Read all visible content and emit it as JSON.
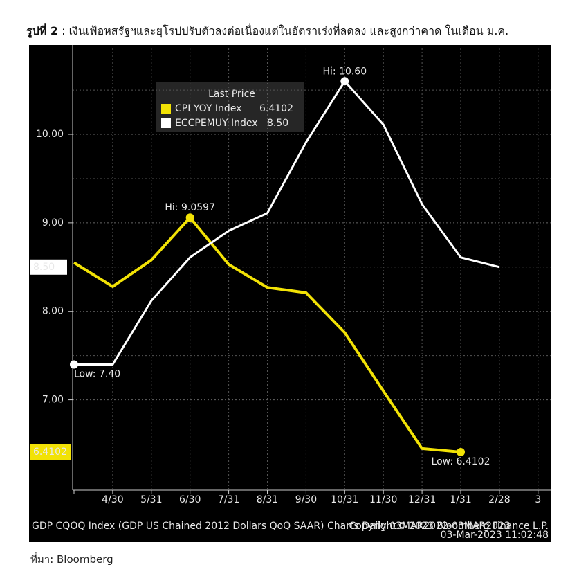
{
  "caption": {
    "label": "รูปที่ 2",
    "text": " : เงินเฟ้อหสรัฐฯและยุโรปปรับตัวลงต่อเนื่องแต่ในอัตราเร่งที่ลดลง และสูงกว่าคาด ในเดือน ม.ค."
  },
  "source": "ที่มา: Bloomberg",
  "chart_data": {
    "type": "line",
    "legend_title": "Last Price",
    "categories": [
      null,
      "4/30",
      "5/31",
      "6/30",
      "7/31",
      "8/31",
      "9/30",
      "10/31",
      "11/30",
      "12/31",
      "1/31",
      "2/28",
      "3"
    ],
    "series": [
      {
        "name": "CPI YOY Index",
        "color": "#f2e205",
        "last_label": "6.4102",
        "hi_label": "Hi: 9.0597",
        "low_label": "Low: 6.4102",
        "values": [
          8.55,
          8.28,
          8.58,
          9.0597,
          8.53,
          8.27,
          8.21,
          7.76,
          7.1,
          6.45,
          6.4102,
          null,
          null
        ]
      },
      {
        "name": "ECCPEMUY Index",
        "color": "#ffffff",
        "last_label": "8.50",
        "hi_label": "Hi: 10.60",
        "low_label": "Low: 7.40",
        "values": [
          7.4,
          7.4,
          8.12,
          8.61,
          8.91,
          9.11,
          9.91,
          10.6,
          10.11,
          9.21,
          8.61,
          8.5,
          null
        ]
      }
    ],
    "ylim": [
      5.98,
      10.97
    ],
    "yticks": [
      {
        "value": 7,
        "label": "7.00"
      },
      {
        "value": 8,
        "label": "8.00"
      },
      {
        "value": 9,
        "label": "9.00"
      },
      {
        "value": 10,
        "label": "10.00"
      }
    ],
    "minor_yticks": [
      6.5,
      7.5,
      8.5,
      9.5,
      10.5
    ],
    "grid": true,
    "footer_left": "GDP CQOQ Index (GDP US Chained 2012 Dollars QoQ SAAR) Charts  Daily 03MAR2022-03MAR2023",
    "footer_right": "Copyright© 2023 Bloomberg Finance L.P.",
    "footer_time": "03-Mar-2023 11:02:48"
  }
}
